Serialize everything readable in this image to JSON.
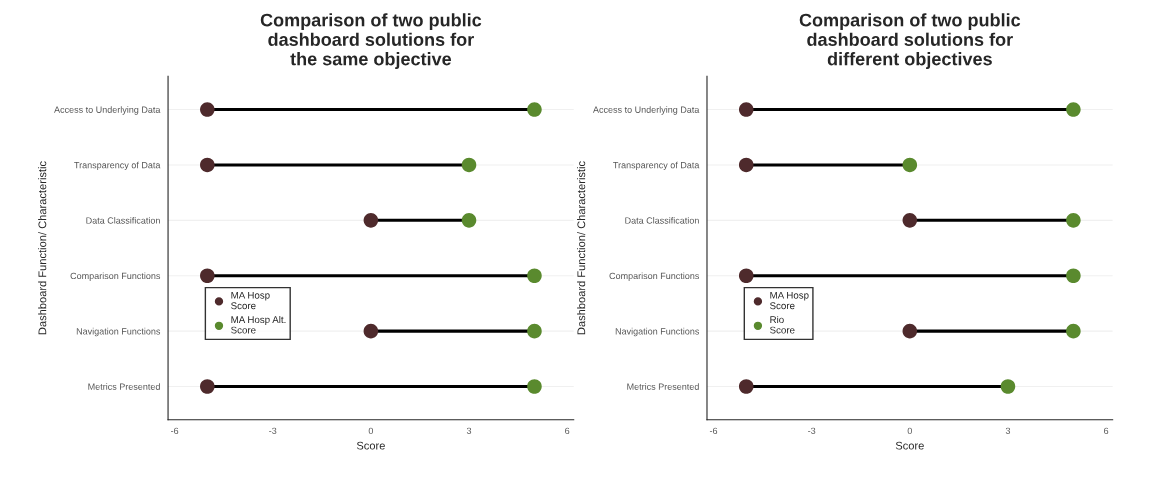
{
  "chart_data": [
    {
      "type": "scatter",
      "orientation": "horizontal",
      "title": "Comparison of two public\ndashboard solutions for\nthe same objective",
      "xlabel": "Score",
      "ylabel": "Dashboard Function/ Characteristic",
      "categories": [
        "Access to Underlying Data",
        "Transparency of Data",
        "Data Classification",
        "Comparison Functions",
        "Navigation Functions",
        "Metrics Presented"
      ],
      "series": [
        {
          "name": "MA Hosp\nScore",
          "color": "#4e2a2c",
          "values": [
            -5,
            -5,
            0,
            -5,
            0,
            -5
          ]
        },
        {
          "name": "MA Hosp Alt.\nScore",
          "color": "#5a8a2e",
          "values": [
            5,
            3,
            3,
            5,
            5,
            5
          ]
        }
      ],
      "xlim": [
        -6.2,
        6.2
      ],
      "xticks": [
        -6,
        -3,
        0,
        3,
        6
      ],
      "grid": "y",
      "legend": "bottom left",
      "marker": "circle"
    },
    {
      "type": "scatter",
      "orientation": "horizontal",
      "title": "Comparison of two public\ndashboard solutions for\ndifferent objectives",
      "xlabel": "Score",
      "ylabel": "Dashboard Function/ Characteristic",
      "categories": [
        "Access to Underlying Data",
        "Transparency of Data",
        "Data Classification",
        "Comparison Functions",
        "Navigation Functions",
        "Metrics Presented"
      ],
      "series": [
        {
          "name": "MA Hosp\nScore",
          "color": "#4e2a2c",
          "values": [
            -5,
            -5,
            0,
            -5,
            0,
            -5
          ]
        },
        {
          "name": "Rio\nScore",
          "color": "#5a8a2e",
          "values": [
            5,
            0,
            5,
            5,
            5,
            3
          ]
        }
      ],
      "xlim": [
        -6.2,
        6.2
      ],
      "xticks": [
        -6,
        -3,
        0,
        3,
        6
      ],
      "grid": "y",
      "legend": "bottom left",
      "marker": "circle"
    }
  ]
}
